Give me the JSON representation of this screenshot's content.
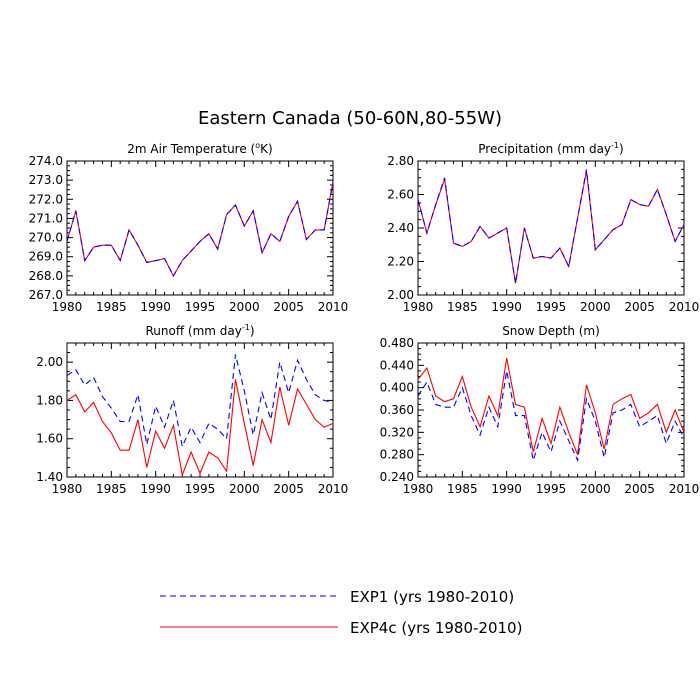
{
  "title": "Eastern Canada (50-60N,80-55W)",
  "colors": {
    "exp1": "#0000ff",
    "exp4c": "#ff0000",
    "axis": "#000000"
  },
  "legend": [
    {
      "label": "EXP1 (yrs 1980-2010)",
      "style": "dashed",
      "color": "#0000ff"
    },
    {
      "label": "EXP4c (yrs 1980-2010)",
      "style": "solid",
      "color": "#ff0000"
    }
  ],
  "chart_data": [
    {
      "type": "line",
      "title": "2m Air Temperature (",
      "title_suffix": "K)",
      "title_symbol": "o",
      "xlim": [
        1980,
        2010
      ],
      "xticks": [
        1980,
        1985,
        1990,
        1995,
        2000,
        2005,
        2010
      ],
      "xtick_labels": [
        "1980",
        "1985",
        "1990",
        "1995",
        "2000",
        "2005",
        "2010"
      ],
      "ylim": [
        267.0,
        274.0
      ],
      "yticks": [
        267.0,
        268.0,
        269.0,
        270.0,
        271.0,
        272.0,
        273.0,
        274.0
      ],
      "ytick_labels": [
        "267.0",
        "268.0",
        "269.0",
        "270.0",
        "271.0",
        "272.0",
        "273.0",
        "274.0"
      ],
      "x": [
        1980,
        1981,
        1982,
        1983,
        1984,
        1985,
        1986,
        1987,
        1988,
        1989,
        1990,
        1991,
        1992,
        1993,
        1994,
        1995,
        1996,
        1997,
        1998,
        1999,
        2000,
        2001,
        2002,
        2003,
        2004,
        2005,
        2006,
        2007,
        2008,
        2009,
        2010
      ],
      "series": [
        {
          "name": "EXP1",
          "values": [
            269.8,
            271.4,
            268.8,
            269.5,
            269.6,
            269.6,
            268.8,
            270.4,
            269.6,
            268.7,
            268.8,
            268.9,
            268.0,
            268.8,
            269.3,
            269.8,
            270.2,
            269.4,
            271.2,
            271.7,
            270.6,
            271.4,
            269.2,
            270.2,
            269.8,
            271.1,
            271.9,
            269.9,
            270.4,
            270.4,
            272.9
          ]
        },
        {
          "name": "EXP4c",
          "values": [
            269.8,
            271.4,
            268.8,
            269.5,
            269.6,
            269.6,
            268.8,
            270.4,
            269.6,
            268.7,
            268.8,
            268.9,
            268.0,
            268.8,
            269.3,
            269.8,
            270.2,
            269.4,
            271.2,
            271.7,
            270.6,
            271.4,
            269.2,
            270.2,
            269.8,
            271.1,
            271.9,
            269.9,
            270.4,
            270.4,
            272.9
          ]
        }
      ]
    },
    {
      "type": "line",
      "title": "Precipitation (mm day",
      "title_suffix": ")",
      "title_symbol": "-1",
      "xlim": [
        1980,
        2010
      ],
      "xticks": [
        1980,
        1985,
        1990,
        1995,
        2000,
        2005,
        2010
      ],
      "xtick_labels": [
        "1980",
        "1985",
        "1990",
        "1995",
        "2000",
        "2005",
        "2010"
      ],
      "ylim": [
        2.0,
        2.8
      ],
      "yticks": [
        2.0,
        2.2,
        2.4,
        2.6,
        2.8
      ],
      "ytick_labels": [
        "2.00",
        "2.20",
        "2.40",
        "2.60",
        "2.80"
      ],
      "x": [
        1980,
        1981,
        1982,
        1983,
        1984,
        1985,
        1986,
        1987,
        1988,
        1989,
        1990,
        1991,
        1992,
        1993,
        1994,
        1995,
        1996,
        1997,
        1998,
        1999,
        2000,
        2001,
        2002,
        2003,
        2004,
        2005,
        2006,
        2007,
        2008,
        2009,
        2010
      ],
      "series": [
        {
          "name": "EXP1",
          "values": [
            2.57,
            2.37,
            2.54,
            2.7,
            2.31,
            2.29,
            2.32,
            2.41,
            2.34,
            2.37,
            2.4,
            2.07,
            2.4,
            2.22,
            2.23,
            2.22,
            2.28,
            2.17,
            2.46,
            2.75,
            2.27,
            2.33,
            2.39,
            2.42,
            2.57,
            2.54,
            2.53,
            2.63,
            2.48,
            2.32,
            2.42
          ]
        },
        {
          "name": "EXP4c",
          "values": [
            2.57,
            2.37,
            2.54,
            2.69,
            2.31,
            2.29,
            2.32,
            2.41,
            2.34,
            2.37,
            2.4,
            2.07,
            2.4,
            2.22,
            2.23,
            2.22,
            2.28,
            2.17,
            2.46,
            2.74,
            2.27,
            2.33,
            2.39,
            2.42,
            2.57,
            2.54,
            2.53,
            2.63,
            2.48,
            2.32,
            2.42
          ]
        }
      ]
    },
    {
      "type": "line",
      "title": "Runoff (mm day",
      "title_suffix": ")",
      "title_symbol": "-1",
      "xlim": [
        1980,
        2010
      ],
      "xticks": [
        1980,
        1985,
        1990,
        1995,
        2000,
        2005,
        2010
      ],
      "xtick_labels": [
        "1980",
        "1985",
        "1990",
        "1995",
        "2000",
        "2005",
        "2010"
      ],
      "ylim": [
        1.4,
        2.1
      ],
      "yticks": [
        1.4,
        1.6,
        1.8,
        2.0
      ],
      "ytick_labels": [
        "1.40",
        "1.60",
        "1.80",
        "2.00"
      ],
      "x": [
        1980,
        1981,
        1982,
        1983,
        1984,
        1985,
        1986,
        1987,
        1988,
        1989,
        1990,
        1991,
        1992,
        1993,
        1994,
        1995,
        1996,
        1997,
        1998,
        1999,
        2000,
        2001,
        2002,
        2003,
        2004,
        2005,
        2006,
        2007,
        2008,
        2009,
        2010
      ],
      "series": [
        {
          "name": "EXP1",
          "values": [
            1.93,
            1.96,
            1.88,
            1.92,
            1.82,
            1.76,
            1.69,
            1.69,
            1.83,
            1.57,
            1.77,
            1.66,
            1.8,
            1.56,
            1.66,
            1.58,
            1.68,
            1.65,
            1.6,
            2.04,
            1.85,
            1.62,
            1.84,
            1.7,
            2.0,
            1.84,
            2.01,
            1.91,
            1.83,
            1.8,
            1.79
          ]
        },
        {
          "name": "EXP4c",
          "values": [
            1.8,
            1.83,
            1.74,
            1.79,
            1.69,
            1.63,
            1.54,
            1.54,
            1.7,
            1.45,
            1.64,
            1.55,
            1.67,
            1.41,
            1.53,
            1.42,
            1.53,
            1.5,
            1.43,
            1.91,
            1.68,
            1.46,
            1.7,
            1.58,
            1.87,
            1.67,
            1.86,
            1.78,
            1.7,
            1.66,
            1.68
          ]
        }
      ]
    },
    {
      "type": "line",
      "title": "Snow Depth (m)",
      "title_suffix": "",
      "title_symbol": "",
      "xlim": [
        1980,
        2010
      ],
      "xticks": [
        1980,
        1985,
        1990,
        1995,
        2000,
        2005,
        2010
      ],
      "xtick_labels": [
        "1980",
        "1985",
        "1990",
        "1995",
        "2000",
        "2005",
        "2010"
      ],
      "ylim": [
        0.24,
        0.48
      ],
      "yticks": [
        0.24,
        0.28,
        0.32,
        0.36,
        0.4,
        0.44,
        0.48
      ],
      "ytick_labels": [
        "0.240",
        "0.280",
        "0.320",
        "0.360",
        "0.400",
        "0.440",
        "0.480"
      ],
      "x": [
        1980,
        1981,
        1982,
        1983,
        1984,
        1985,
        1986,
        1987,
        1988,
        1989,
        1990,
        1991,
        1992,
        1993,
        1994,
        1995,
        1996,
        1997,
        1998,
        1999,
        2000,
        2001,
        2002,
        2003,
        2004,
        2005,
        2006,
        2007,
        2008,
        2009,
        2010
      ],
      "series": [
        {
          "name": "EXP1",
          "values": [
            0.385,
            0.41,
            0.37,
            0.365,
            0.365,
            0.4,
            0.35,
            0.315,
            0.365,
            0.33,
            0.43,
            0.35,
            0.35,
            0.27,
            0.32,
            0.285,
            0.34,
            0.305,
            0.27,
            0.38,
            0.34,
            0.275,
            0.355,
            0.36,
            0.37,
            0.33,
            0.34,
            0.35,
            0.3,
            0.34,
            0.31
          ]
        },
        {
          "name": "EXP4c",
          "values": [
            0.415,
            0.435,
            0.385,
            0.375,
            0.38,
            0.42,
            0.365,
            0.33,
            0.385,
            0.35,
            0.453,
            0.37,
            0.365,
            0.285,
            0.345,
            0.3,
            0.365,
            0.32,
            0.28,
            0.405,
            0.355,
            0.29,
            0.37,
            0.38,
            0.388,
            0.345,
            0.355,
            0.37,
            0.32,
            0.36,
            0.32
          ]
        }
      ]
    }
  ]
}
